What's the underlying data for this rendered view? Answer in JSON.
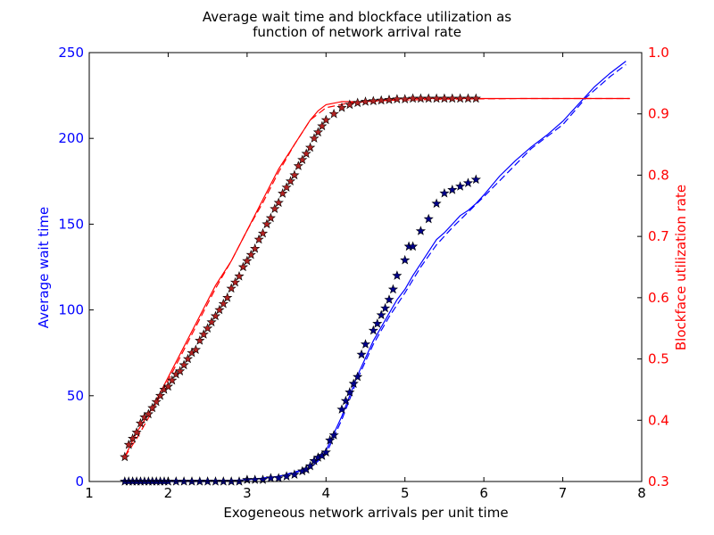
{
  "chart_data": {
    "type": "line",
    "title": [
      "Average wait time and blockface utilization as",
      "function of network arrival rate"
    ],
    "xlabel": "Exogeneous network arrivals per unit time",
    "ylabel_left": "Average wait time",
    "ylabel_right": "Blockface utilization rate",
    "xlim": [
      1,
      8
    ],
    "ylim_left": [
      0,
      250
    ],
    "ylim_right": [
      0.3,
      1.0
    ],
    "x_ticks": [
      "1",
      "2",
      "3",
      "4",
      "5",
      "6",
      "7",
      "8"
    ],
    "y_left_ticks": [
      "0",
      "50",
      "100",
      "150",
      "200",
      "250"
    ],
    "y_right_ticks": [
      "0.3",
      "0.4",
      "0.5",
      "0.6",
      "0.7",
      "0.8",
      "0.9",
      "1.0"
    ],
    "grid": false,
    "colors": {
      "left_axis": "#0000ff",
      "right_axis": "#ff0000",
      "wait_series": "#0000ff",
      "wait_dark": "#00008b",
      "util_series": "#ff0000",
      "util_marker": "#b22222"
    },
    "series": [
      {
        "axis": "left",
        "style": "solid",
        "x": [
          1.45,
          2.0,
          2.5,
          3.0,
          3.2,
          3.4,
          3.6,
          3.8,
          3.9,
          4.0,
          4.1,
          4.2,
          4.3,
          4.4,
          4.5,
          4.6,
          4.7,
          4.8,
          4.9,
          5.0,
          5.1,
          5.2,
          5.3,
          5.4,
          5.5,
          5.6,
          5.7,
          5.8,
          5.9,
          6.0,
          6.2,
          6.4,
          6.6,
          6.8,
          7.0,
          7.2,
          7.4,
          7.6,
          7.8
        ],
        "y": [
          0,
          0,
          0,
          1,
          2,
          3,
          5,
          8,
          12,
          18,
          28,
          38,
          50,
          62,
          72,
          82,
          90,
          98,
          106,
          112,
          120,
          127,
          134,
          141,
          145,
          150,
          155,
          158,
          162,
          167,
          178,
          187,
          195,
          202,
          210,
          220,
          230,
          238,
          245
        ]
      },
      {
        "axis": "left",
        "style": "dashed",
        "x": [
          1.45,
          2.0,
          2.5,
          3.0,
          3.4,
          3.8,
          4.0,
          4.2,
          4.4,
          4.6,
          4.8,
          5.0,
          5.2,
          5.4,
          5.6,
          5.8,
          6.0,
          6.3,
          6.6,
          7.0,
          7.3,
          7.6,
          7.8
        ],
        "y": [
          0,
          0,
          0,
          1,
          3,
          8,
          16,
          36,
          60,
          80,
          96,
          110,
          125,
          138,
          148,
          157,
          166,
          180,
          194,
          208,
          224,
          236,
          243
        ]
      },
      {
        "axis": "left",
        "style": "markers",
        "x": [
          1.45,
          1.5,
          1.55,
          1.6,
          1.65,
          1.7,
          1.75,
          1.8,
          1.85,
          1.9,
          1.95,
          2.0,
          2.1,
          2.2,
          2.3,
          2.4,
          2.5,
          2.6,
          2.7,
          2.8,
          2.9,
          3.0,
          3.1,
          3.2,
          3.3,
          3.4,
          3.5,
          3.6,
          3.7,
          3.75,
          3.8,
          3.85,
          3.9,
          3.95,
          4.0,
          4.05,
          4.1,
          4.2,
          4.25,
          4.3,
          4.35,
          4.4,
          4.45,
          4.5,
          4.6,
          4.65,
          4.7,
          4.75,
          4.8,
          4.85,
          4.9,
          5.0,
          5.05,
          5.1,
          5.2,
          5.3,
          5.4,
          5.5,
          5.6,
          5.7,
          5.8,
          5.9
        ],
        "y": [
          0,
          0,
          0,
          0,
          0,
          0,
          0,
          0,
          0,
          0,
          0,
          0,
          0,
          0,
          0,
          0,
          0,
          0,
          0,
          0,
          0,
          1,
          1,
          1,
          2,
          2,
          3,
          4,
          6,
          7,
          9,
          12,
          14,
          15,
          17,
          24,
          27,
          42,
          47,
          52,
          57,
          61,
          74,
          80,
          88,
          92,
          97,
          101,
          106,
          112,
          120,
          129,
          137,
          137,
          146,
          153,
          162,
          168,
          170,
          172,
          174,
          176
        ]
      },
      {
        "axis": "right",
        "style": "solid",
        "x": [
          1.45,
          1.6,
          1.8,
          2.0,
          2.2,
          2.4,
          2.6,
          2.8,
          3.0,
          3.2,
          3.4,
          3.6,
          3.8,
          3.9,
          4.0,
          4.2,
          4.5,
          5.0,
          5.5,
          6.0,
          6.5,
          7.0,
          7.5,
          7.85
        ],
        "y": [
          0.34,
          0.38,
          0.42,
          0.47,
          0.52,
          0.57,
          0.62,
          0.66,
          0.71,
          0.76,
          0.81,
          0.85,
          0.89,
          0.905,
          0.915,
          0.92,
          0.92,
          0.925,
          0.925,
          0.925,
          0.925,
          0.925,
          0.925,
          0.925
        ]
      },
      {
        "axis": "right",
        "style": "dashed",
        "x": [
          1.45,
          1.6,
          1.8,
          2.0,
          2.2,
          2.4,
          2.6,
          2.8,
          3.0,
          3.2,
          3.4,
          3.6,
          3.8,
          4.0,
          4.3,
          4.8,
          5.5,
          6.5,
          7.85
        ],
        "y": [
          0.34,
          0.37,
          0.415,
          0.465,
          0.515,
          0.565,
          0.615,
          0.66,
          0.71,
          0.755,
          0.805,
          0.85,
          0.89,
          0.91,
          0.918,
          0.922,
          0.924,
          0.925,
          0.925
        ]
      },
      {
        "axis": "right",
        "style": "markers",
        "x": [
          1.45,
          1.5,
          1.55,
          1.6,
          1.65,
          1.7,
          1.75,
          1.8,
          1.85,
          1.9,
          1.95,
          2.0,
          2.05,
          2.1,
          2.15,
          2.2,
          2.25,
          2.3,
          2.35,
          2.4,
          2.45,
          2.5,
          2.55,
          2.6,
          2.65,
          2.7,
          2.75,
          2.8,
          2.85,
          2.9,
          2.95,
          3.0,
          3.05,
          3.1,
          3.15,
          3.2,
          3.25,
          3.3,
          3.35,
          3.4,
          3.45,
          3.5,
          3.55,
          3.6,
          3.65,
          3.7,
          3.75,
          3.8,
          3.85,
          3.9,
          3.95,
          4.0,
          4.1,
          4.2,
          4.3,
          4.4,
          4.5,
          4.6,
          4.7,
          4.8,
          4.9,
          5.0,
          5.1,
          5.2,
          5.3,
          5.4,
          5.5,
          5.6,
          5.7,
          5.8,
          5.9
        ],
        "y": [
          0.34,
          0.36,
          0.37,
          0.38,
          0.395,
          0.405,
          0.41,
          0.42,
          0.43,
          0.44,
          0.45,
          0.455,
          0.465,
          0.475,
          0.48,
          0.49,
          0.5,
          0.51,
          0.515,
          0.53,
          0.54,
          0.55,
          0.56,
          0.57,
          0.58,
          0.59,
          0.6,
          0.615,
          0.625,
          0.635,
          0.65,
          0.66,
          0.67,
          0.68,
          0.695,
          0.705,
          0.72,
          0.73,
          0.745,
          0.755,
          0.77,
          0.78,
          0.79,
          0.8,
          0.815,
          0.825,
          0.835,
          0.845,
          0.86,
          0.87,
          0.88,
          0.89,
          0.9,
          0.91,
          0.915,
          0.918,
          0.92,
          0.921,
          0.922,
          0.923,
          0.924,
          0.924,
          0.925,
          0.925,
          0.925,
          0.925,
          0.925,
          0.925,
          0.925,
          0.925,
          0.925
        ]
      }
    ]
  }
}
